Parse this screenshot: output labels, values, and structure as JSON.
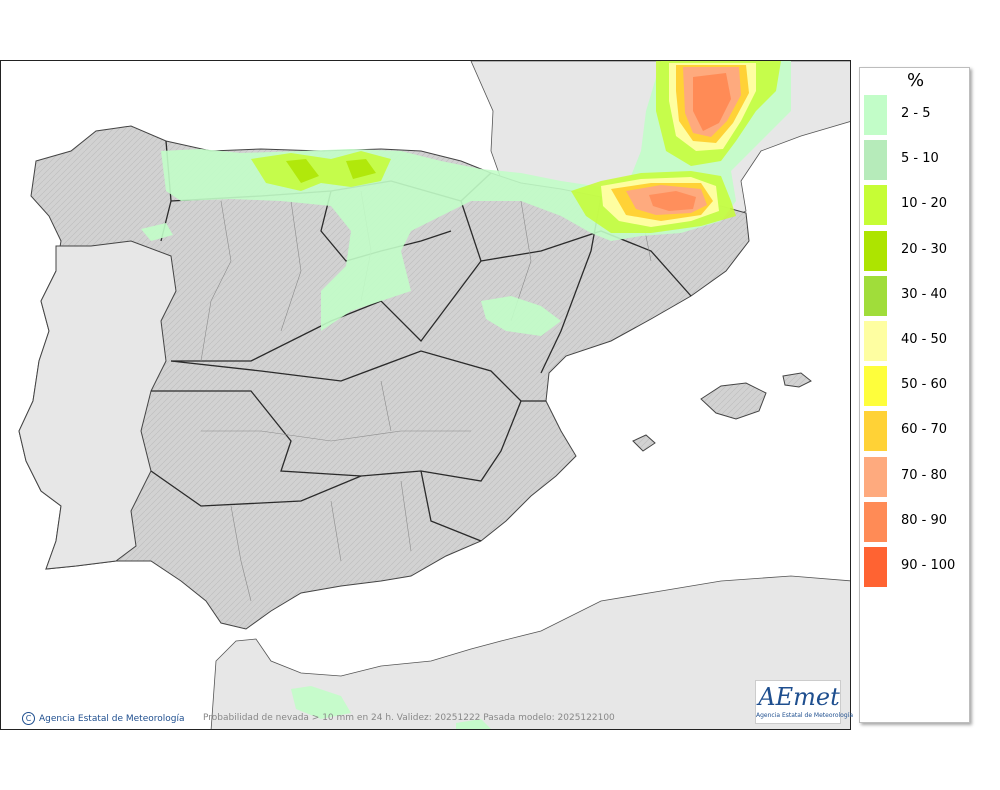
{
  "legend": {
    "title": "%",
    "entries": [
      {
        "label": "2 - 5",
        "color": "#c2fdc8"
      },
      {
        "label": "5 - 10",
        "color": "#b6ebba"
      },
      {
        "label": "10 - 20",
        "color": "#c6fd35"
      },
      {
        "label": "20 - 30",
        "color": "#ade400"
      },
      {
        "label": "30 - 40",
        "color": "#a0dd3a"
      },
      {
        "label": "40 - 50",
        "color": "#fefea1"
      },
      {
        "label": "50 - 60",
        "color": "#fefe3c"
      },
      {
        "label": "60 - 70",
        "color": "#ffd236"
      },
      {
        "label": "70 - 80",
        "color": "#feaa7e"
      },
      {
        "label": "80 - 90",
        "color": "#ff8b56"
      },
      {
        "label": "90 - 100",
        "color": "#ff6332"
      }
    ]
  },
  "map": {
    "land_color": "#d4d4d4",
    "sea_color": "#ffffff",
    "foreign_land_color": "#e7e7e7",
    "border_color": "#333333"
  },
  "footer": {
    "copyright_symbol": "C",
    "copyright": "Agencia Estatal de Meteorología",
    "caption": "Probabilidad de nevada > 10 mm en 24 h. Validez: 20251222 Pasada modelo: 2025122100"
  },
  "logo": {
    "name": "AEmet",
    "subtitle": "Agencia Estatal de Meteorología"
  }
}
